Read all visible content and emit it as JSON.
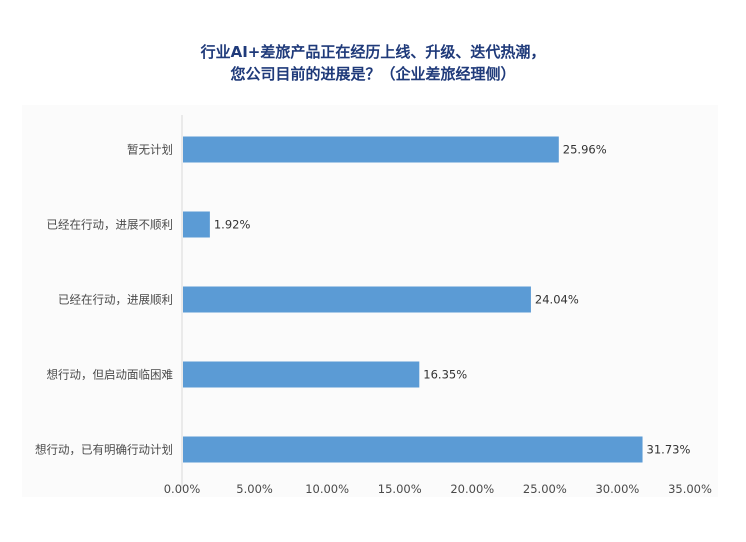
{
  "chart_title": {
    "line1": "行业AI+差旅产品正在经历上线、升级、迭代热潮，",
    "line2": "您公司目前的进展是？（企业差旅经理侧）"
  },
  "colors": {
    "bar": "#5b9bd5",
    "title": "#1f3a7a"
  },
  "chart_data": {
    "type": "bar",
    "orientation": "horizontal",
    "title": "行业AI+差旅产品正在经历上线、升级、迭代热潮，您公司目前的进展是？（企业差旅经理侧）",
    "categories": [
      "暂无计划",
      "已经在行动，进展不顺利",
      "已经在行动，进展顺利",
      "想行动，但启动面临困难",
      "想行动，已有明确行动计划"
    ],
    "values": [
      25.96,
      1.92,
      24.04,
      16.35,
      31.73
    ],
    "value_labels": [
      "25.96%",
      "1.92%",
      "24.04%",
      "16.35%",
      "31.73%"
    ],
    "xlim": [
      0,
      35
    ],
    "xticks": [
      "0.00%",
      "5.00%",
      "10.00%",
      "15.00%",
      "20.00%",
      "25.00%",
      "30.00%",
      "35.00%"
    ],
    "grid": false,
    "legend": "none"
  }
}
